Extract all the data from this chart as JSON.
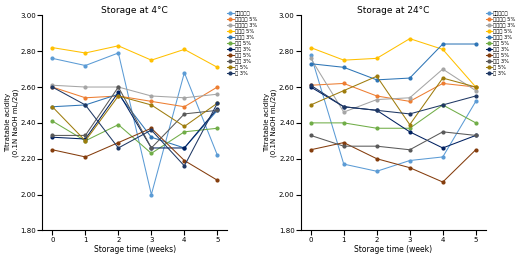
{
  "weeks": [
    0,
    1,
    2,
    3,
    4,
    5
  ],
  "chart1_title": "Storage at 4°C",
  "chart2_title": "Storage at 24°C",
  "xlabel1": "Storage time (weeks)",
  "xlabel2": "Storage time (week)",
  "ylabel": "Titratable acidity\n(0.1N NaOH mL/2g)",
  "ylim": [
    1.8,
    3.0
  ],
  "yticks": [
    1.8,
    2.0,
    2.2,
    2.4,
    2.6,
    2.8,
    3.0
  ],
  "series_labels": [
    "싹우고주장",
    "블루베리 5%",
    "블루베리 3%",
    "토마토 5%",
    "토마토 3%",
    "딸기 5%",
    "딸기 3%",
    "포도 5%",
    "포도 3%",
    "마 5%",
    "마 3%"
  ],
  "colors": [
    "#5B9BD5",
    "#ED7D31",
    "#A5A5A5",
    "#FFC000",
    "#264478",
    "#70AD47",
    "#264478",
    "#843C0C",
    "#595959",
    "#9E7C0C",
    "#1F3864"
  ],
  "data_4C": [
    [
      2.76,
      2.72,
      2.79,
      2.0,
      2.68,
      2.22
    ],
    [
      2.6,
      2.54,
      2.55,
      2.52,
      2.49,
      2.6
    ],
    [
      2.61,
      2.6,
      2.6,
      2.55,
      2.54,
      2.56
    ],
    [
      2.82,
      2.79,
      2.83,
      2.75,
      2.81,
      2.71
    ],
    [
      2.49,
      2.5,
      2.56,
      2.32,
      2.26,
      2.47
    ],
    [
      2.41,
      2.3,
      2.39,
      2.23,
      2.35,
      2.37
    ],
    [
      2.32,
      2.31,
      2.57,
      2.26,
      2.26,
      2.48
    ],
    [
      2.25,
      2.21,
      2.29,
      2.37,
      2.19,
      2.08
    ],
    [
      2.33,
      2.33,
      2.6,
      2.26,
      2.45,
      2.47
    ],
    [
      2.49,
      2.3,
      2.55,
      2.5,
      2.38,
      2.51
    ],
    [
      2.6,
      2.5,
      2.26,
      2.36,
      2.16,
      2.51
    ]
  ],
  "data_24C": [
    [
      2.78,
      2.17,
      2.13,
      2.19,
      2.21,
      2.52
    ],
    [
      2.61,
      2.62,
      2.55,
      2.52,
      2.62,
      2.6
    ],
    [
      2.76,
      2.46,
      2.53,
      2.54,
      2.7,
      2.58
    ],
    [
      2.82,
      2.75,
      2.76,
      2.87,
      2.81,
      2.6
    ],
    [
      2.73,
      2.71,
      2.64,
      2.65,
      2.84,
      2.84
    ],
    [
      2.4,
      2.4,
      2.37,
      2.37,
      2.5,
      2.4
    ],
    [
      2.6,
      2.49,
      2.47,
      2.35,
      2.26,
      2.33
    ],
    [
      2.25,
      2.29,
      2.2,
      2.15,
      2.07,
      2.25
    ],
    [
      2.33,
      2.27,
      2.27,
      2.25,
      2.35,
      2.33
    ],
    [
      2.5,
      2.58,
      2.66,
      2.39,
      2.65,
      2.6
    ],
    [
      2.61,
      2.49,
      2.47,
      2.45,
      2.5,
      2.55
    ]
  ]
}
